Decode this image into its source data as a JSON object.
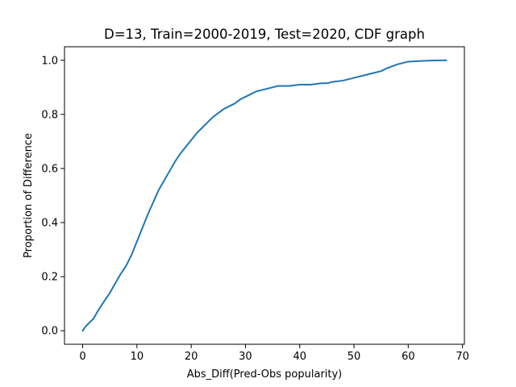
{
  "chart_data": {
    "type": "line",
    "title": "D=13, Train=2000-2019, Test=2020, CDF graph",
    "xlabel": "Abs_Diff(Pred-Obs popularity)",
    "ylabel": "Proportion of Difference",
    "xlim": [
      -3.35,
      70.35
    ],
    "ylim": [
      -0.05,
      1.05
    ],
    "xticks": [
      0,
      10,
      20,
      30,
      40,
      50,
      60,
      70
    ],
    "xtick_labels": [
      "0",
      "10",
      "20",
      "30",
      "40",
      "50",
      "60",
      "70"
    ],
    "yticks": [
      0.0,
      0.2,
      0.4,
      0.6,
      0.8,
      1.0
    ],
    "ytick_labels": [
      "0.0",
      "0.2",
      "0.4",
      "0.6",
      "0.8",
      "1.0"
    ],
    "grid": false,
    "series": [
      {
        "color": "#1f77b4",
        "x": [
          0,
          0.5,
          1,
          2,
          3,
          4,
          5,
          6,
          7,
          8,
          9,
          10,
          11,
          12,
          13,
          14,
          15,
          16,
          17,
          18,
          19,
          20,
          21,
          22,
          23,
          24,
          25,
          26,
          27,
          28,
          29,
          30,
          31,
          32,
          33,
          34,
          35,
          36,
          38,
          40,
          42,
          44,
          45,
          46,
          48,
          50,
          52,
          54,
          55,
          56,
          58,
          60,
          62,
          64,
          67
        ],
        "y": [
          0.0,
          0.015,
          0.025,
          0.045,
          0.08,
          0.11,
          0.14,
          0.175,
          0.21,
          0.24,
          0.28,
          0.33,
          0.38,
          0.43,
          0.475,
          0.52,
          0.555,
          0.59,
          0.625,
          0.655,
          0.68,
          0.705,
          0.73,
          0.75,
          0.77,
          0.79,
          0.805,
          0.82,
          0.83,
          0.84,
          0.855,
          0.865,
          0.875,
          0.885,
          0.89,
          0.895,
          0.9,
          0.905,
          0.905,
          0.91,
          0.91,
          0.915,
          0.915,
          0.92,
          0.925,
          0.935,
          0.945,
          0.955,
          0.96,
          0.97,
          0.985,
          0.995,
          0.997,
          0.999,
          1.0
        ]
      }
    ]
  }
}
